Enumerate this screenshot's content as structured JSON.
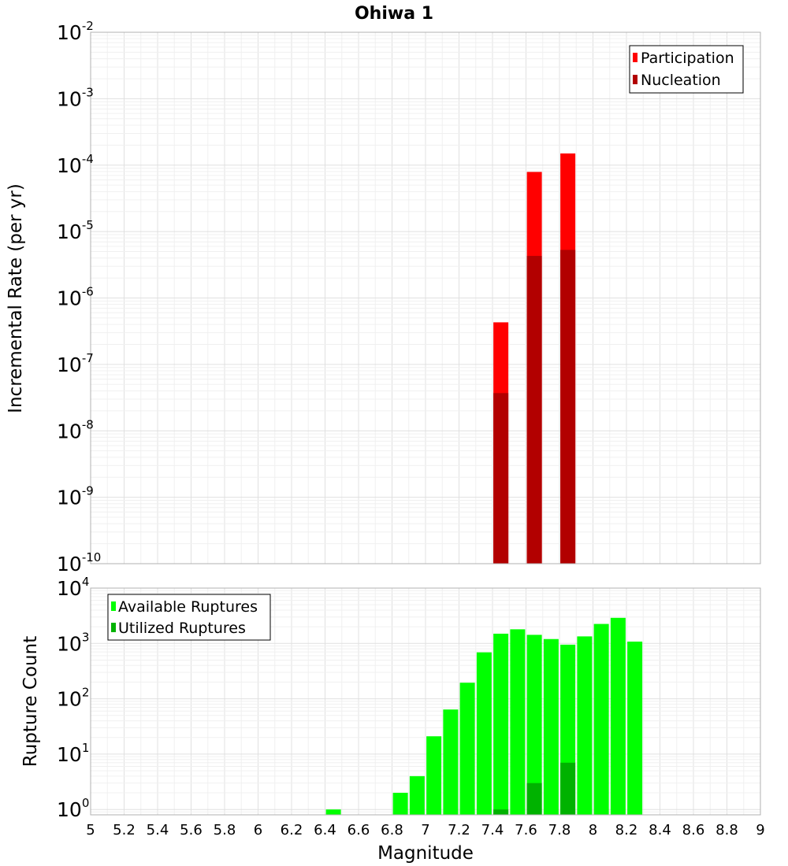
{
  "chart_data": [
    {
      "type": "bar",
      "title": "Ohiwa 1",
      "xlabel": "Magnitude",
      "ylabel": "Incremental Rate (per yr)",
      "yscale": "log",
      "xlim": [
        5,
        9
      ],
      "ylim": [
        1e-10,
        0.01
      ],
      "grid": true,
      "legend_position": "top-right",
      "series": [
        {
          "name": "Participation",
          "color": "#ff0000",
          "x": [
            7.45,
            7.65,
            7.85
          ],
          "values": [
            4.3e-07,
            7.9e-05,
            0.00015
          ]
        },
        {
          "name": "Nucleation",
          "color": "#b20000",
          "x": [
            7.45,
            7.65,
            7.85
          ],
          "values": [
            3.7e-08,
            4.3e-06,
            5.3e-06
          ]
        }
      ]
    },
    {
      "type": "bar",
      "title": "",
      "xlabel": "Magnitude",
      "ylabel": "Rupture Count",
      "yscale": "log",
      "xlim": [
        5,
        9
      ],
      "ylim": [
        0.8,
        10000
      ],
      "grid": true,
      "legend_position": "top-left",
      "series": [
        {
          "name": "Available Ruptures",
          "color": "#00ff00",
          "x": [
            6.45,
            6.85,
            6.95,
            7.05,
            7.15,
            7.25,
            7.35,
            7.45,
            7.55,
            7.65,
            7.75,
            7.85,
            7.95,
            8.05,
            8.15,
            8.25
          ],
          "values": [
            1,
            2,
            4,
            21,
            64,
            195,
            690,
            1500,
            1800,
            1430,
            1200,
            950,
            1340,
            2250,
            2900,
            1080
          ]
        },
        {
          "name": "Utilized Ruptures",
          "color": "#00b200",
          "x": [
            7.45,
            7.65,
            7.85
          ],
          "values": [
            1,
            3,
            7
          ]
        }
      ]
    }
  ],
  "x_ticks": [
    "5",
    "5.2",
    "5.4",
    "5.6",
    "5.8",
    "6",
    "6.2",
    "6.4",
    "6.6",
    "6.8",
    "7",
    "7.2",
    "7.4",
    "7.6",
    "7.8",
    "8",
    "8.2",
    "8.4",
    "8.6",
    "8.8",
    "9"
  ],
  "top_y_ticks": [
    {
      "base": "10",
      "exp": "-2"
    },
    {
      "base": "10",
      "exp": "-3"
    },
    {
      "base": "10",
      "exp": "-4"
    },
    {
      "base": "10",
      "exp": "-5"
    },
    {
      "base": "10",
      "exp": "-6"
    },
    {
      "base": "10",
      "exp": "-7"
    },
    {
      "base": "10",
      "exp": "-8"
    },
    {
      "base": "10",
      "exp": "-9"
    },
    {
      "base": "10",
      "exp": "-10"
    }
  ],
  "bottom_y_ticks": [
    {
      "base": "10",
      "exp": "4"
    },
    {
      "base": "10",
      "exp": "3"
    },
    {
      "base": "10",
      "exp": "2"
    },
    {
      "base": "10",
      "exp": "1"
    },
    {
      "base": "10",
      "exp": "0"
    }
  ]
}
